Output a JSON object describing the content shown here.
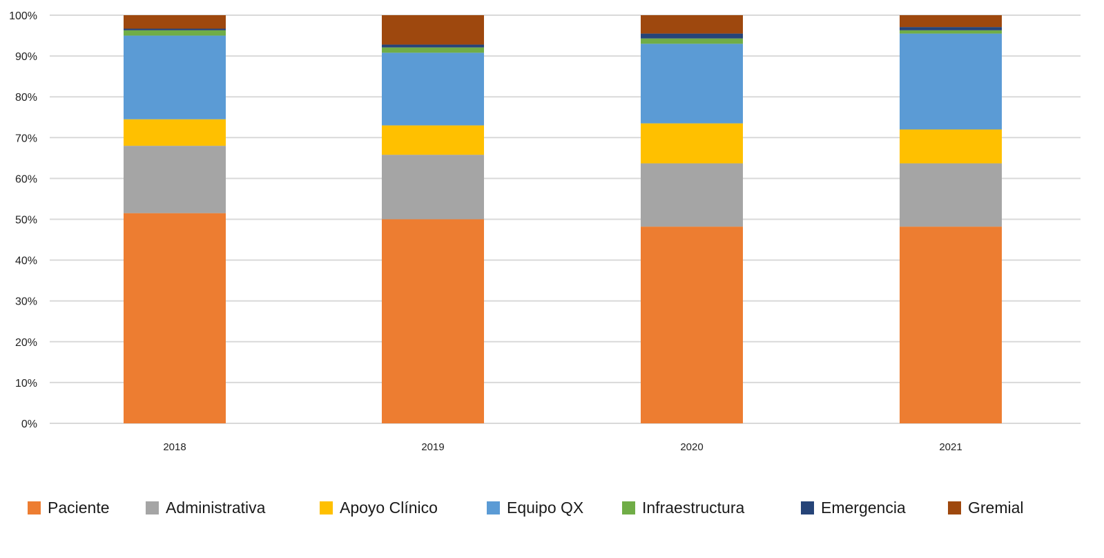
{
  "chart_data": {
    "type": "bar",
    "stacked": true,
    "categories": [
      "2018",
      "2019",
      "2020",
      "2021"
    ],
    "y_ticks": [
      "0%",
      "10%",
      "20%",
      "30%",
      "40%",
      "50%",
      "60%",
      "70%",
      "80%",
      "90%",
      "100%"
    ],
    "ylim": [
      0,
      100
    ],
    "grid": true,
    "legend_position": "bottom",
    "series": [
      {
        "name": "Paciente",
        "color": "#ED7D31",
        "values": [
          51.5,
          50.0,
          48.2,
          48.2
        ]
      },
      {
        "name": "Administrativa",
        "color": "#A5A5A5",
        "values": [
          16.5,
          15.8,
          15.5,
          15.5
        ]
      },
      {
        "name": "Apoyo Clínico",
        "color": "#FFC000",
        "values": [
          6.5,
          7.2,
          9.8,
          8.3
        ]
      },
      {
        "name": "Equipo QX",
        "color": "#5B9BD5",
        "values": [
          20.5,
          17.8,
          19.5,
          23.5
        ]
      },
      {
        "name": "Infraestructura",
        "color": "#70AD47",
        "values": [
          1.3,
          1.3,
          1.3,
          0.8
        ]
      },
      {
        "name": "Emergencia",
        "color": "#264478",
        "values": [
          0.4,
          0.7,
          1.2,
          0.8
        ]
      },
      {
        "name": "Gremial",
        "color": "#9E480E",
        "values": [
          3.3,
          7.2,
          4.5,
          2.9
        ]
      }
    ]
  }
}
